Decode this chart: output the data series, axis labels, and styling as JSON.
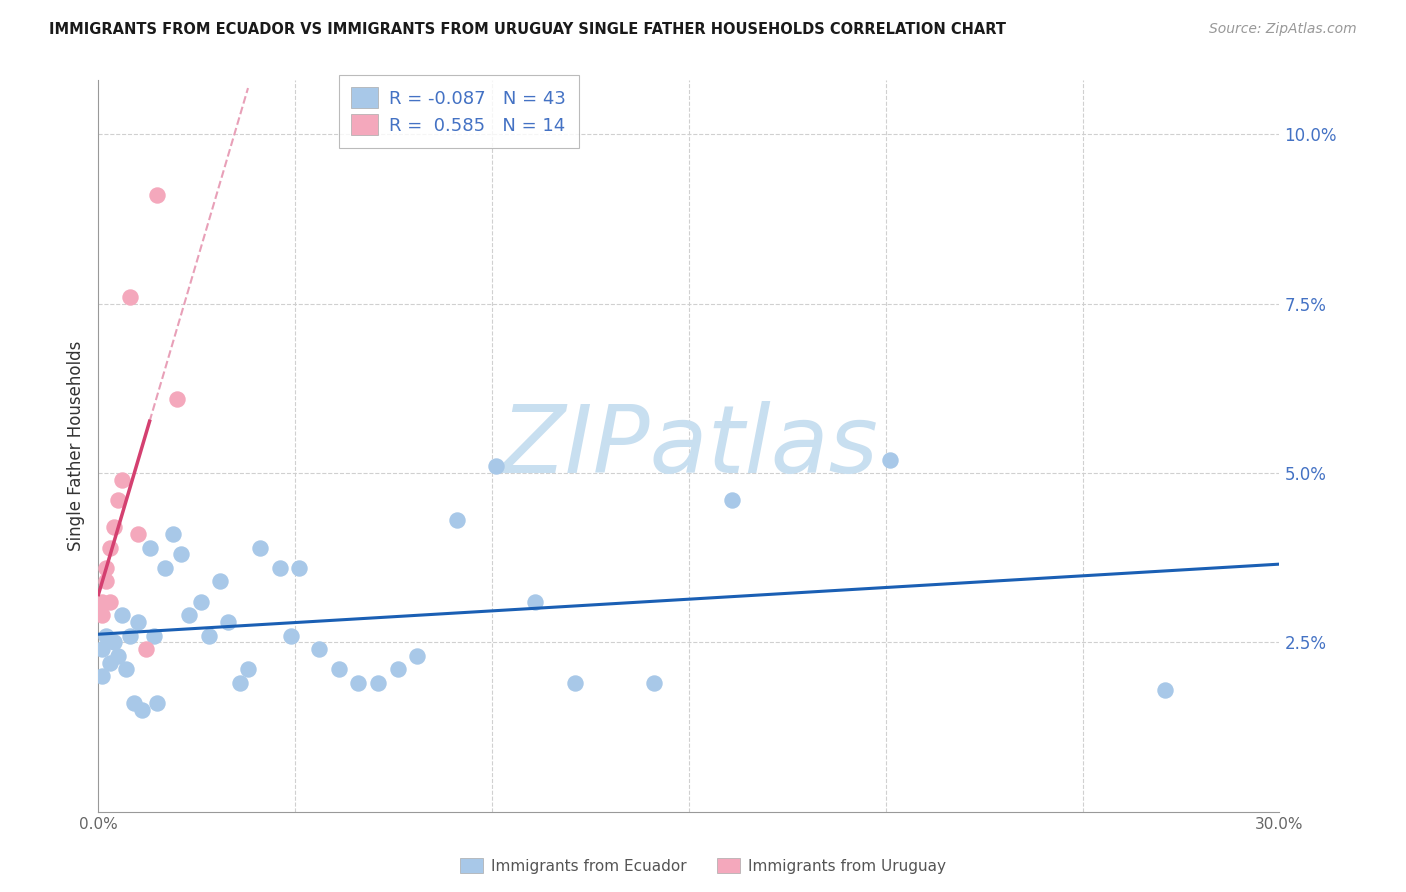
{
  "title": "IMMIGRANTS FROM ECUADOR VS IMMIGRANTS FROM URUGUAY SINGLE FATHER HOUSEHOLDS CORRELATION CHART",
  "source": "Source: ZipAtlas.com",
  "ylabel": "Single Father Households",
  "color_ecuador": "#a8c8e8",
  "color_uruguay": "#f4a8bc",
  "color_ecuador_line": "#1a5fb4",
  "color_uruguay_line": "#d44070",
  "color_uruguay_dash": "#e8a0b8",
  "color_grid": "#d0d0d0",
  "color_ytick": "#4472c4",
  "color_xtick": "#666666",
  "xlim": [
    0.0,
    0.3
  ],
  "ylim": [
    0.0,
    0.108
  ],
  "ecuador_x": [
    0.001,
    0.001,
    0.002,
    0.003,
    0.004,
    0.005,
    0.006,
    0.007,
    0.008,
    0.009,
    0.01,
    0.011,
    0.013,
    0.014,
    0.015,
    0.017,
    0.019,
    0.021,
    0.023,
    0.026,
    0.028,
    0.031,
    0.033,
    0.036,
    0.038,
    0.041,
    0.046,
    0.049,
    0.051,
    0.056,
    0.061,
    0.066,
    0.071,
    0.076,
    0.081,
    0.091,
    0.101,
    0.111,
    0.121,
    0.141,
    0.161,
    0.201,
    0.271
  ],
  "ecuador_y": [
    0.024,
    0.02,
    0.026,
    0.022,
    0.025,
    0.023,
    0.029,
    0.021,
    0.026,
    0.016,
    0.028,
    0.015,
    0.039,
    0.026,
    0.016,
    0.036,
    0.041,
    0.038,
    0.029,
    0.031,
    0.026,
    0.034,
    0.028,
    0.019,
    0.021,
    0.039,
    0.036,
    0.026,
    0.036,
    0.024,
    0.021,
    0.019,
    0.019,
    0.021,
    0.023,
    0.043,
    0.051,
    0.031,
    0.019,
    0.019,
    0.046,
    0.052,
    0.018
  ],
  "uruguay_x": [
    0.001,
    0.001,
    0.002,
    0.002,
    0.003,
    0.003,
    0.004,
    0.005,
    0.006,
    0.008,
    0.01,
    0.012,
    0.015,
    0.02
  ],
  "uruguay_y": [
    0.029,
    0.031,
    0.034,
    0.036,
    0.039,
    0.031,
    0.042,
    0.046,
    0.049,
    0.076,
    0.041,
    0.024,
    0.091,
    0.061
  ],
  "R_ecuador": -0.087,
  "N_ecuador": 43,
  "R_uruguay": 0.585,
  "N_uruguay": 14,
  "watermark_text": "ZIPatlas",
  "watermark_color": "#c8dff0"
}
